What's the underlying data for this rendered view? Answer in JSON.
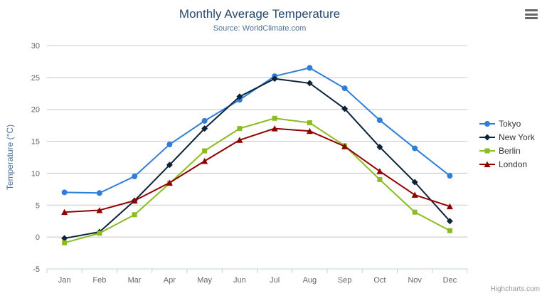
{
  "title": "Monthly Average Temperature",
  "subtitle": "Source: WorldClimate.com",
  "y_axis_title": "Temperature (°C)",
  "credits": "Highcharts.com",
  "icons": {
    "menu": "hamburger-menu-icon"
  },
  "colors": {
    "title": "#274b6d",
    "subtitle": "#4d759e",
    "grid": "#c8c8c8",
    "axis_line": "#c0d0e0",
    "axis_label": "#666666"
  },
  "chart_data": {
    "type": "line",
    "title": "Monthly Average Temperature",
    "subtitle": "Source: WorldClimate.com",
    "xlabel": "",
    "ylabel": "Temperature (°C)",
    "categories": [
      "Jan",
      "Feb",
      "Mar",
      "Apr",
      "May",
      "Jun",
      "Jul",
      "Aug",
      "Sep",
      "Oct",
      "Nov",
      "Dec"
    ],
    "series": [
      {
        "name": "Tokyo",
        "color": "#2f7ed8",
        "marker": "circle",
        "values": [
          7.0,
          6.9,
          9.5,
          14.5,
          18.2,
          21.5,
          25.2,
          26.5,
          23.3,
          18.3,
          13.9,
          9.6
        ]
      },
      {
        "name": "New York",
        "color": "#0d233a",
        "marker": "diamond",
        "values": [
          -0.2,
          0.8,
          5.7,
          11.3,
          17.0,
          22.0,
          24.8,
          24.1,
          20.1,
          14.1,
          8.6,
          2.5
        ]
      },
      {
        "name": "Berlin",
        "color": "#8bbc21",
        "marker": "square",
        "values": [
          -0.9,
          0.6,
          3.5,
          8.4,
          13.5,
          17.0,
          18.6,
          17.9,
          14.3,
          9.0,
          3.9,
          1.0
        ]
      },
      {
        "name": "London",
        "color": "#910000",
        "marker": "triangle",
        "values": [
          3.9,
          4.2,
          5.7,
          8.5,
          11.9,
          15.2,
          17.0,
          16.6,
          14.2,
          10.3,
          6.6,
          4.8
        ]
      }
    ],
    "ylim": [
      -5,
      30
    ],
    "y_ticks": [
      -5,
      0,
      5,
      10,
      15,
      20,
      25,
      30
    ],
    "grid": true,
    "legend_position": "right"
  }
}
